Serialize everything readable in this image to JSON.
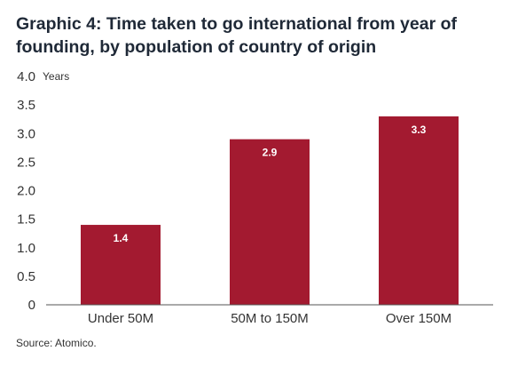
{
  "chart_data": {
    "type": "bar",
    "title": "Graphic 4: Time taken to go international from year of founding, by population of country of origin",
    "ylabel": "Years",
    "xlabel": "",
    "categories": [
      "Under 50M",
      "50M to 150M",
      "Over 150M"
    ],
    "values": [
      1.4,
      2.9,
      3.3
    ],
    "data_labels": [
      "1.4",
      "2.9",
      "3.3"
    ],
    "yticks": [
      "0",
      "0.5",
      "1.0",
      "1.5",
      "2.0",
      "2.5",
      "3.0",
      "3.5",
      "4.0"
    ],
    "ylim": [
      0,
      4
    ],
    "grid": false,
    "legend": "none",
    "bar_color": "#a31a30",
    "label_color": "#ffffff"
  },
  "source": "Source: Atomico."
}
